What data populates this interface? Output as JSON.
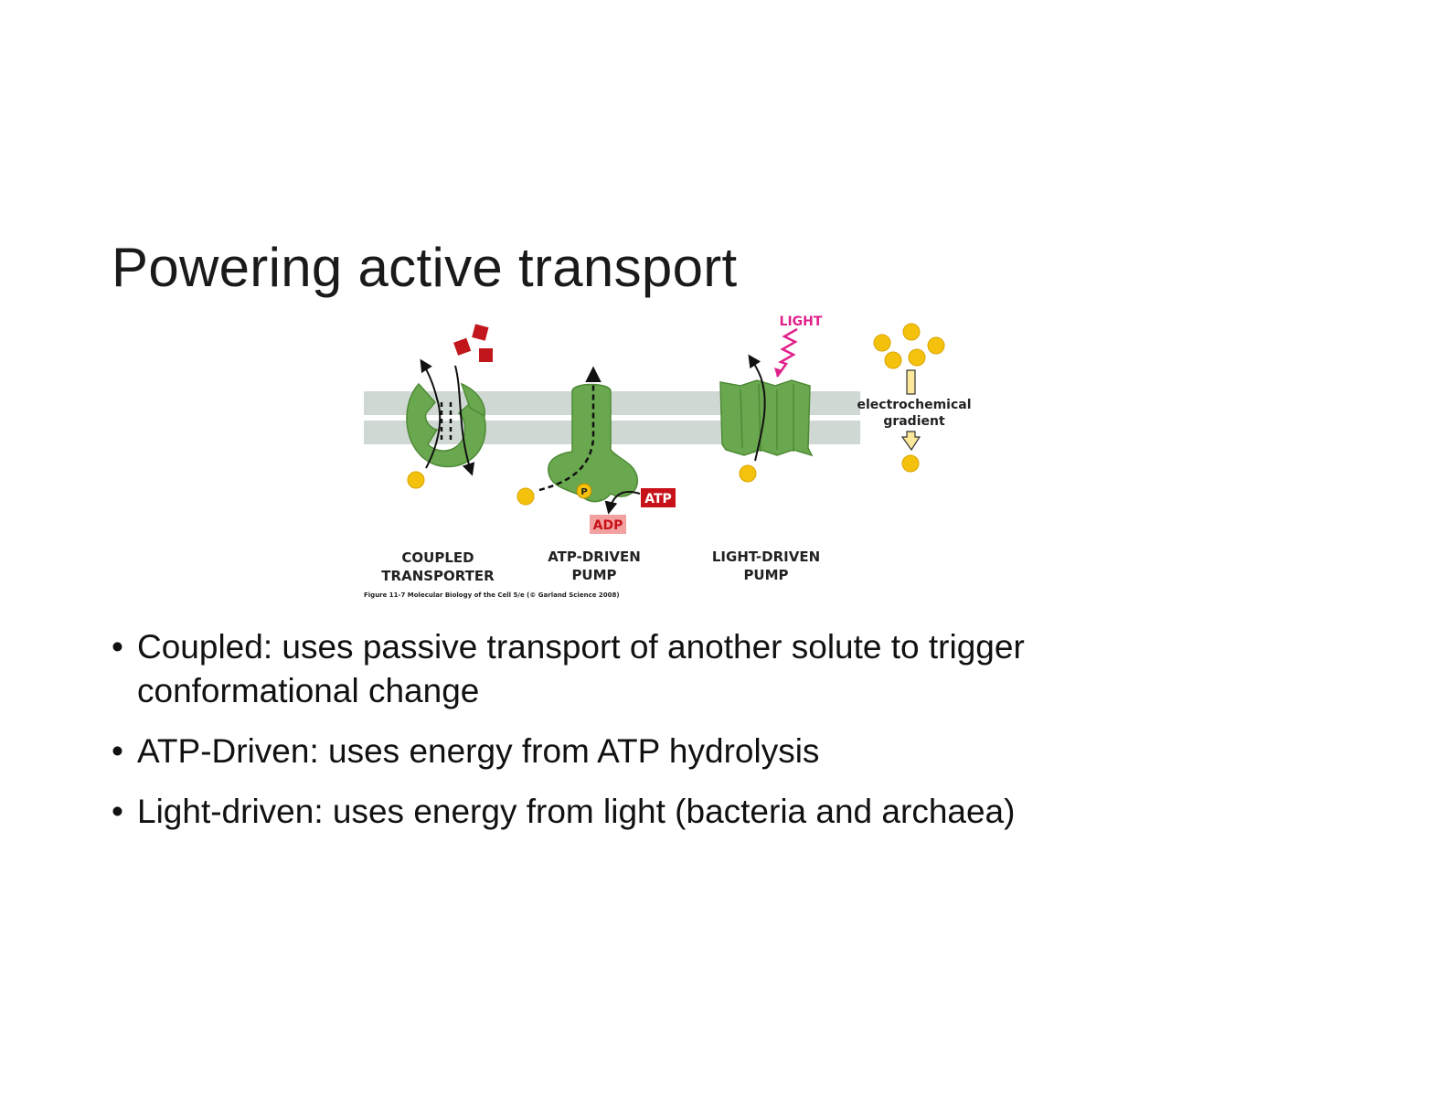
{
  "slide": {
    "title": "Powering active transport"
  },
  "figure": {
    "light_label": "LIGHT",
    "gradient_label_line1": "electrochemical",
    "gradient_label_line2": "gradient",
    "p_label": "P",
    "atp_label": "ATP",
    "adp_label": "ADP",
    "coupled_line1": "COUPLED",
    "coupled_line2": "TRANSPORTER",
    "atp_pump_line1": "ATP-DRIVEN",
    "atp_pump_line2": "PUMP",
    "light_pump_line1": "LIGHT-DRIVEN",
    "light_pump_line2": "PUMP",
    "caption": "Figure 11-7  Molecular Biology of the Cell 5/e (© Garland Science 2008)",
    "colors": {
      "membrane": "#cfd8d2",
      "protein": "#6aa84f",
      "protein_dark": "#4e8a36",
      "solute": "#f4c20d",
      "cube": "#c0161c",
      "atp": "#c8121a",
      "adp": "#f3a0a0",
      "light": "#e0218a",
      "gradient_arrow": "#fbe89a"
    }
  },
  "bullets": [
    {
      "bullet": "•",
      "text": "Coupled: uses passive transport of another solute to trigger conformational change"
    },
    {
      "bullet": "•",
      "text": "ATP-Driven: uses energy from ATP hydrolysis"
    },
    {
      "bullet": "•",
      "text": "Light-driven: uses energy from light (bacteria and archaea)"
    }
  ]
}
